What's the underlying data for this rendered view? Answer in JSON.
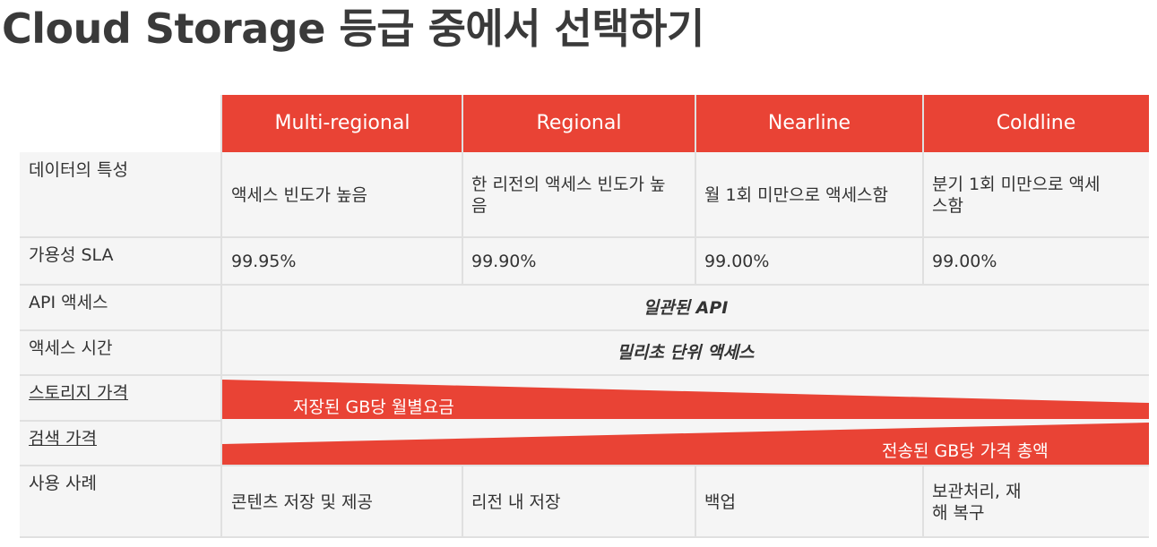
{
  "title": "Cloud Storage 등급 중에서 선택하기",
  "columns": [
    "Multi-regional",
    "Regional",
    "Nearline",
    "Coldline"
  ],
  "rows": {
    "characteristics": {
      "label": "데이터의 특성",
      "values": [
        "액세스 빈도가 높음",
        "한 리전의 액세스 빈도가 높음",
        "월 1회 미만으로 액세스함",
        "분기 1회 미만으로 액세스함"
      ]
    },
    "sla": {
      "label": "가용성 SLA",
      "values": [
        "99.95%",
        "99.90%",
        "99.00%",
        "99.00%"
      ]
    },
    "api": {
      "label": "API 액세스",
      "value": "일관된 API"
    },
    "access_time": {
      "label": "액세스 시간",
      "value": "밀리초 단위 액세스"
    },
    "storage_price": {
      "label": "스토리지 가격",
      "value": "저장된 GB당 월별요금"
    },
    "retrieval_price": {
      "label": "검색 가격",
      "value": "전송된 GB당 가격 총액"
    },
    "use_cases": {
      "label": "사용 사례",
      "values": [
        "콘텐츠 저장 및 제공",
        "리전 내 저장",
        "백업",
        "보관처리, 재해 복구"
      ]
    }
  },
  "colors": {
    "header_bg": "#e94335",
    "table_bg": "#f5f5f5",
    "grid_line": "#e0e0e0",
    "wedge": "#e94335"
  }
}
